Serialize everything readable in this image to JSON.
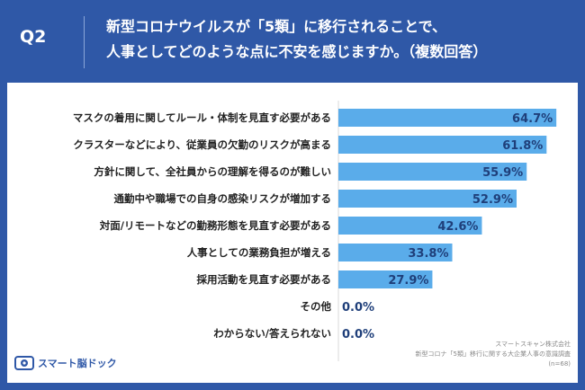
{
  "header": {
    "question_label": "Q2",
    "question_line1": "新型コロナウイルスが「5類」に移行されることで、",
    "question_line2": "人事としてどのような点に不安を感じますか。（複数回答）"
  },
  "chart_data": {
    "type": "bar",
    "orientation": "horizontal",
    "categories": [
      "マスクの着用に関してルール・体制を見直す必要がある",
      "クラスターなどにより、従業員の欠勤のリスクが高まる",
      "方針に関して、全社員からの理解を得るのが難しい",
      "通勤中や職場での自身の感染リスクが増加する",
      "対面/リモートなどの勤務形態を見直す必要がある",
      "人事としての業務負担が増える",
      "採用活動を見直す必要がある",
      "その他",
      "わからない/答えられない"
    ],
    "values": [
      64.7,
      61.8,
      55.9,
      52.9,
      42.6,
      33.8,
      27.9,
      0.0,
      0.0
    ],
    "value_labels": [
      "64.7%",
      "61.8%",
      "55.9%",
      "52.9%",
      "42.6%",
      "33.8%",
      "27.9%",
      "0.0%",
      "0.0%"
    ],
    "xlim": [
      0,
      70
    ],
    "bar_color": "#5aacea",
    "label_color": "#1f3f7a"
  },
  "footer": {
    "brand": "スマート脳ドック",
    "company": "スマートスキャン株式会社",
    "survey": "新型コロナ「5類」移行に関する大企業人事の意識調査",
    "sample": "(n=68)"
  },
  "colors": {
    "background": "#2f58a7",
    "panel": "#ffffff"
  }
}
